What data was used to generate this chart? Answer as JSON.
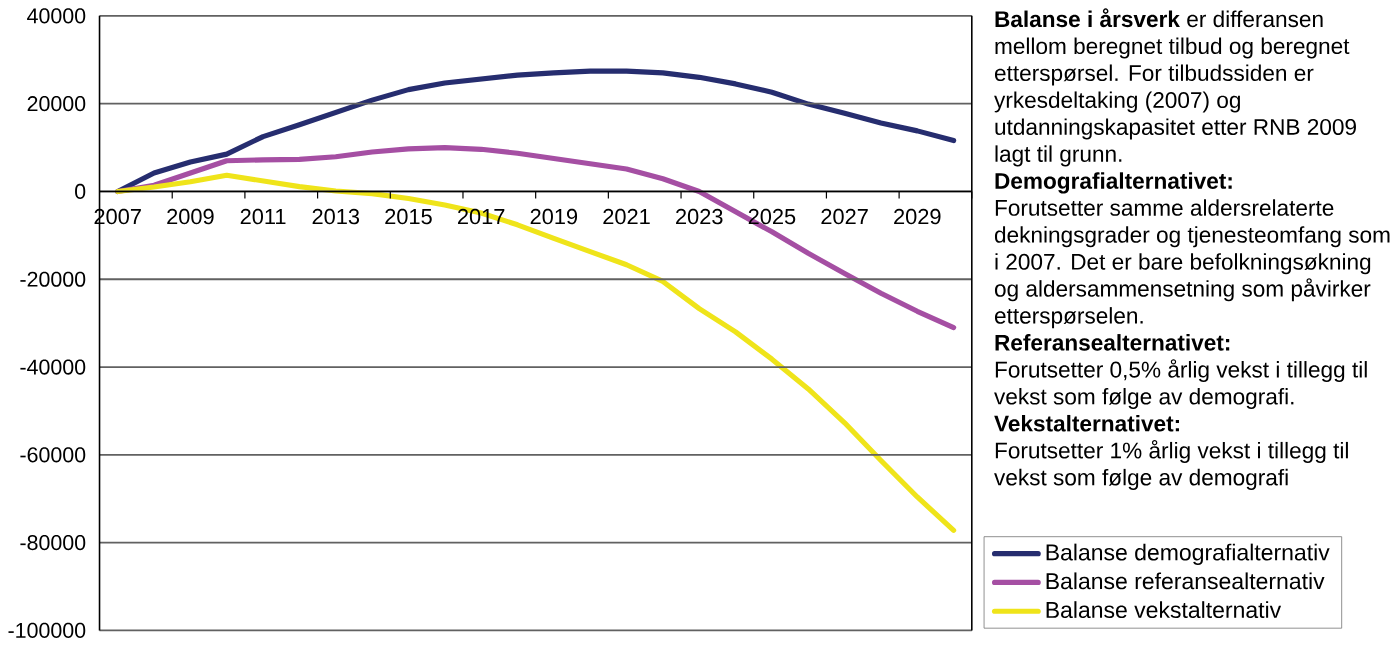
{
  "chart_data": {
    "type": "line",
    "categories": [
      "2007",
      null,
      "2009",
      null,
      "2011",
      null,
      "2013",
      null,
      "2015",
      null,
      "2017",
      null,
      "2019",
      null,
      "2021",
      null,
      "2023",
      null,
      "2025",
      null,
      "2027",
      null,
      "2029",
      null
    ],
    "series": [
      {
        "name": "Balanse demografialternativ",
        "color": "#262d6f",
        "values": [
          0,
          4200,
          6700,
          8500,
          12500,
          15200,
          18000,
          20800,
          23200,
          24700,
          25600,
          26500,
          27000,
          27400,
          27400,
          27000,
          26000,
          24500,
          22600,
          19900,
          17800,
          15600,
          13800,
          11600
        ]
      },
      {
        "name": "Balanse referansealternativ",
        "color": "#a54fa3",
        "values": [
          0,
          1400,
          4200,
          7000,
          7200,
          7300,
          7900,
          9000,
          9700,
          10000,
          9600,
          8700,
          7500,
          6300,
          5100,
          2900,
          0,
          -4600,
          -9200,
          -14100,
          -18700,
          -23200,
          -27300,
          -31000
        ]
      },
      {
        "name": "Balanse vekstalternativ",
        "color": "#efe41a",
        "values": [
          0,
          1000,
          2200,
          3700,
          2400,
          1100,
          100,
          -500,
          -1600,
          -3100,
          -4900,
          -7600,
          -10700,
          -13700,
          -16700,
          -20500,
          -26700,
          -32000,
          -38200,
          -45000,
          -52700,
          -61300,
          -69600,
          -77200
        ]
      }
    ],
    "ylim": [
      -100000,
      40000
    ],
    "yticks": [
      40000,
      20000,
      0,
      -20000,
      -40000,
      -60000,
      -80000,
      -100000
    ],
    "grid": "y",
    "legend": "bottom right",
    "annotations": [
      "**Balanse i årsverk** er differansen mellom beregnet tilbud og beregnet etterspørsel. For tilbudssiden er yrkesdeltaking (2007) og utdanningskapasitet etter RNB 2009 lagt til grunn.",
      "**Demografialternativet:**",
      "Forutsetter samme aldersrelaterte dekningsgrader og tjenesteomfang som i 2007. Det er bare befolkningsøkning og aldersammensetning som påvirker etterspørselen.",
      "**Referansealternativet:**",
      "Forutsetter 0,5% årlig vekst i tillegg til vekst som følge av demografi.",
      "**Vekstalternativet:**",
      "Forutsetter 1% årlig vekst i tillegg til vekst som følge av demografi"
    ]
  }
}
